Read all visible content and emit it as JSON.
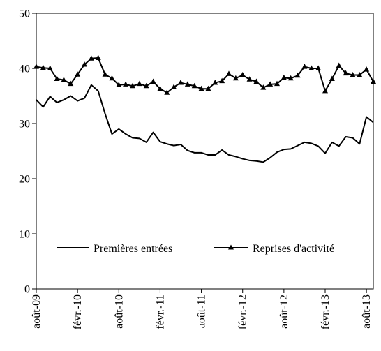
{
  "chart_data": {
    "type": "line",
    "title": "",
    "xlabel": "",
    "ylabel": "",
    "ylim": [
      0,
      50
    ],
    "yticks": [
      0,
      10,
      20,
      30,
      40,
      50
    ],
    "grid": false,
    "legend_position": "bottom-center (inside plot)",
    "x": [
      "août-09",
      "sept.-09",
      "oct.-09",
      "nov.-09",
      "déc.-09",
      "janv.-10",
      "févr.-10",
      "mars-10",
      "avr.-10",
      "mai-10",
      "juin-10",
      "juil.-10",
      "août-10",
      "sept.-10",
      "oct.-10",
      "nov.-10",
      "déc.-10",
      "janv.-11",
      "févr.-11",
      "mars-11",
      "avr.-11",
      "mai-11",
      "juin-11",
      "juil.-11",
      "août-11",
      "sept.-11",
      "oct.-11",
      "nov.-11",
      "déc.-11",
      "janv.-12",
      "févr.-12",
      "mars-12",
      "avr.-12",
      "mai-12",
      "juin-12",
      "juil.-12",
      "août-12",
      "sept.-12",
      "oct.-12",
      "nov.-12",
      "déc.-12",
      "janv.-13",
      "févr.-13",
      "mars-13",
      "avr.-13",
      "mai-13",
      "juin-13",
      "juil.-13",
      "août-13",
      "sept.-13"
    ],
    "x_tick_labels": [
      "août-09",
      "févr.-10",
      "août-10",
      "févr.-11",
      "août-11",
      "févr.-12",
      "août-12",
      "févr.-13",
      "août-13"
    ],
    "series": [
      {
        "name": "Premières entrées",
        "marker": "none",
        "color": "#000000",
        "values": [
          34.3,
          33.0,
          34.9,
          33.8,
          34.3,
          35.0,
          34.1,
          34.6,
          37.0,
          35.9,
          31.8,
          28.1,
          29.0,
          28.1,
          27.4,
          27.3,
          26.6,
          28.4,
          26.7,
          26.3,
          26.0,
          26.2,
          25.1,
          24.7,
          24.7,
          24.3,
          24.3,
          25.2,
          24.3,
          24.0,
          23.6,
          23.3,
          23.2,
          23.0,
          23.8,
          24.8,
          25.3,
          25.4,
          26.0,
          26.6,
          26.4,
          25.9,
          24.6,
          26.6,
          25.9,
          27.6,
          27.4,
          26.3,
          31.2,
          30.2
        ]
      },
      {
        "name": "Reprises d'activité",
        "marker": "triangle",
        "color": "#000000",
        "values": [
          40.3,
          40.1,
          40.0,
          38.1,
          37.9,
          37.2,
          38.9,
          40.7,
          41.8,
          41.9,
          38.9,
          38.2,
          37.0,
          37.1,
          36.8,
          37.2,
          36.8,
          37.6,
          36.3,
          35.6,
          36.6,
          37.4,
          37.1,
          36.8,
          36.3,
          36.3,
          37.4,
          37.7,
          39.0,
          38.2,
          38.8,
          38.0,
          37.6,
          36.5,
          37.1,
          37.2,
          38.3,
          38.2,
          38.7,
          40.3,
          40.0,
          40.0,
          35.9,
          38.1,
          40.5,
          39.1,
          38.8,
          38.8,
          39.8,
          37.6
        ]
      }
    ]
  }
}
